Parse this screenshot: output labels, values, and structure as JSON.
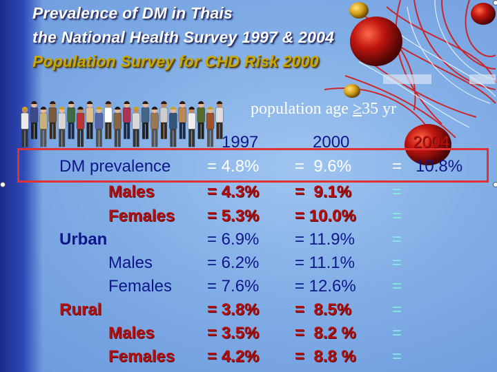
{
  "title": {
    "line1": "Prevalence of DM in Thais",
    "line2": "the National Health Survey 1997 & 2004",
    "line3": "Population Survey for CHD Risk 2000"
  },
  "population_label": {
    "prefix": "population age",
    "geq": "≥",
    "suffix": "35 yr"
  },
  "years": [
    "1997",
    "2000",
    "2004"
  ],
  "rows": [
    {
      "label": "DM prevalence",
      "v1997": "= 4.8%",
      "v2000": "=  9.6%",
      "v2004_eq": "=",
      "v2004": "10.8%"
    },
    {
      "label": "Males",
      "v1997": "= 4.3%",
      "v2000": "=  9.1%",
      "v2004_eq": "="
    },
    {
      "label": "Females",
      "v1997": "= 5.3%",
      "v2000": "= 10.0%",
      "v2004_eq": "="
    },
    {
      "label": "Urban",
      "v1997": "= 6.9%",
      "v2000": "= 11.9%",
      "v2004_eq": "="
    },
    {
      "label": "Males",
      "v1997": "= 6.2%",
      "v2000": "= 11.1%",
      "v2004_eq": "="
    },
    {
      "label": "Females",
      "v1997": "= 7.6%",
      "v2000": "= 12.6%",
      "v2004_eq": "="
    },
    {
      "label": "Rural",
      "v1997": "= 3.8%",
      "v2000": "=  8.5%",
      "v2004_eq": "="
    },
    {
      "label": "Males",
      "v1997": "= 3.5%",
      "v2000": "=  8.2 %",
      "v2004_eq": "="
    },
    {
      "label": "Females",
      "v1997": "= 4.2%",
      "v2000": "=  8.8 %",
      "v2004_eq": "="
    }
  ],
  "colors": {
    "background": "#82aee6",
    "navy_text": "#0f168a",
    "red_text": "#b21010",
    "title_gold": "#c9a800",
    "highlight_box": "#e03030",
    "cyan_equals": "#7ff0e0"
  },
  "decorations": [
    "people-clipart",
    "red-ornament-balls",
    "pinstripe-thread-swirl"
  ]
}
